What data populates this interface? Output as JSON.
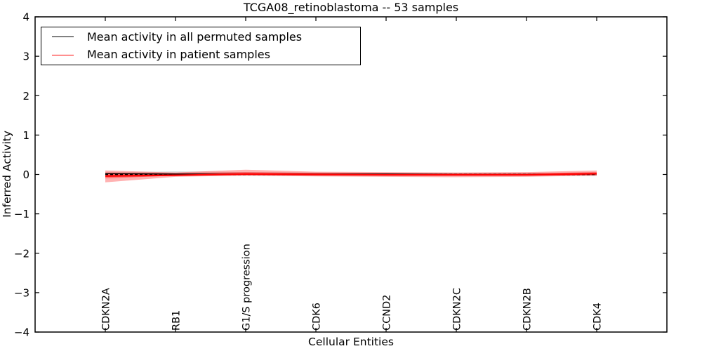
{
  "figure": {
    "title": "TCGA08_retinoblastoma -- 53 samples",
    "xlabel": "Cellular Entities",
    "ylabel": "Inferred Activity"
  },
  "legend": {
    "items": [
      {
        "label": "Mean activity in all permuted samples",
        "color": "#000000"
      },
      {
        "label": "Mean activity in patient samples",
        "color": "#ff0000"
      }
    ]
  },
  "chart_data": {
    "type": "line",
    "title": "TCGA08_retinoblastoma -- 53 samples",
    "xlabel": "Cellular Entities",
    "ylabel": "Inferred Activity",
    "ylim": [
      -4,
      4
    ],
    "grid": false,
    "legend_position": "upper left",
    "x_tick_rotation": 90,
    "y_ticks": {
      "values": [
        4,
        3,
        2,
        1,
        0,
        -1,
        -2,
        -3,
        -4
      ],
      "labels": [
        "4",
        "3",
        "2",
        "1",
        "0",
        "−1",
        "−2",
        "−3",
        "−4"
      ]
    },
    "categories": [
      "CDKN2A",
      "RB1",
      "G1/S progression",
      "CDK6",
      "CCND2",
      "CDKN2C",
      "CDKN2B",
      "CDK4"
    ],
    "series": [
      {
        "name": "Mean activity in all permuted samples",
        "color": "#000000",
        "style": "solid",
        "width": 1.3,
        "values": [
          0.02,
          0.01,
          0.01,
          0.01,
          0.01,
          0.0,
          0.0,
          0.01
        ]
      },
      {
        "name": "Permuted baseline (dashed)",
        "color": "#000000",
        "style": "dashed",
        "width": 1.5,
        "values": [
          0,
          0,
          0,
          0,
          0,
          0,
          0,
          0
        ]
      },
      {
        "name": "Mean activity in patient samples",
        "color": "#ff0000",
        "style": "solid",
        "width": 2.2,
        "values": [
          -0.04,
          -0.02,
          0.01,
          0.0,
          -0.01,
          -0.01,
          -0.01,
          0.02
        ]
      }
    ],
    "bands": [
      {
        "name": "Permuted samples spread",
        "color": "#999999",
        "opacity": 0.3,
        "upper": [
          0.05,
          0.08,
          0.06,
          0.05,
          0.04,
          0.04,
          0.04,
          0.04
        ],
        "lower": [
          -0.05,
          -0.04,
          -0.03,
          -0.04,
          -0.04,
          -0.04,
          -0.04,
          -0.04
        ]
      },
      {
        "name": "Patient samples spread (outer)",
        "color": "#ff0000",
        "opacity": 0.3,
        "upper": [
          0.1,
          0.05,
          0.12,
          0.07,
          0.06,
          0.05,
          0.06,
          0.1
        ],
        "lower": [
          -0.2,
          -0.06,
          -0.03,
          -0.05,
          -0.06,
          -0.07,
          -0.06,
          -0.03
        ]
      },
      {
        "name": "Patient samples spread (inner)",
        "color": "#ff0000",
        "opacity": 0.35,
        "upper": [
          0.05,
          0.03,
          0.06,
          0.04,
          0.03,
          0.03,
          0.03,
          0.06
        ],
        "lower": [
          -0.1,
          -0.03,
          -0.02,
          -0.03,
          -0.03,
          -0.03,
          -0.03,
          -0.02
        ]
      }
    ]
  }
}
